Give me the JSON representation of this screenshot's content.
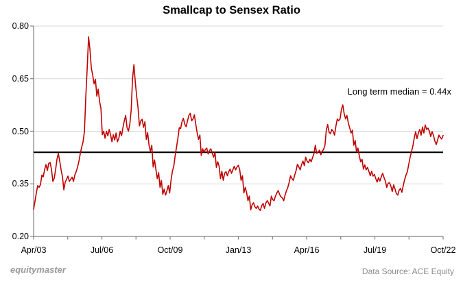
{
  "title": "Smallcap to Sensex Ratio",
  "annotation": "Long term median = 0.44x",
  "footer": {
    "brand": "equitymaster",
    "source": "Data Source: ACE Equity"
  },
  "chart_data": {
    "type": "line",
    "title": "Smallcap to Sensex Ratio",
    "xlabel": "",
    "ylabel": "",
    "ylim": [
      0.2,
      0.8
    ],
    "y_ticks": [
      0.8,
      0.65,
      0.5,
      0.35,
      0.2
    ],
    "y_tick_labels": [
      "0.80",
      "0.65",
      "0.50",
      "0.35",
      "0.20"
    ],
    "x_tick_labels": [
      "Apr/03",
      "Jul/06",
      "Oct/09",
      "Jan/13",
      "Apr/16",
      "Jul/19",
      "Oct/22"
    ],
    "minor_x_ticks_between_labels": 1,
    "grid": "horizontal",
    "legend": "none",
    "median_value": 0.44,
    "median_label": "Long term median = 0.44x",
    "colors": {
      "line": "#C00000",
      "median_line": "#000000",
      "grid": "#D9D9D9",
      "axis": "#808080",
      "text": "#000000",
      "brand_text": "#9a9a9a",
      "source_text": "#8a8a8a",
      "background": "#ffffff"
    },
    "series": [
      {
        "name": "Smallcap to Sensex Ratio",
        "x_note": "299 samples evenly spaced from Apr/03 to Oct/22 (values estimated from plot)",
        "values": [
          0.278,
          0.3,
          0.325,
          0.345,
          0.34,
          0.348,
          0.375,
          0.37,
          0.39,
          0.405,
          0.388,
          0.408,
          0.411,
          0.392,
          0.357,
          0.366,
          0.39,
          0.42,
          0.437,
          0.415,
          0.39,
          0.37,
          0.333,
          0.355,
          0.363,
          0.372,
          0.357,
          0.363,
          0.369,
          0.357,
          0.375,
          0.385,
          0.398,
          0.415,
          0.437,
          0.455,
          0.47,
          0.5,
          0.6,
          0.68,
          0.769,
          0.733,
          0.68,
          0.66,
          0.635,
          0.648,
          0.6,
          0.62,
          0.585,
          0.565,
          0.49,
          0.5,
          0.48,
          0.5,
          0.487,
          0.505,
          0.49,
          0.47,
          0.49,
          0.475,
          0.495,
          0.47,
          0.48,
          0.5,
          0.487,
          0.51,
          0.53,
          0.545,
          0.51,
          0.5,
          0.52,
          0.56,
          0.65,
          0.69,
          0.64,
          0.6,
          0.567,
          0.515,
          0.53,
          0.534,
          0.511,
          0.527,
          0.477,
          0.496,
          0.46,
          0.443,
          0.46,
          0.398,
          0.418,
          0.39,
          0.365,
          0.382,
          0.34,
          0.36,
          0.32,
          0.335,
          0.318,
          0.33,
          0.345,
          0.324,
          0.36,
          0.386,
          0.4,
          0.43,
          0.455,
          0.48,
          0.51,
          0.508,
          0.527,
          0.537,
          0.52,
          0.513,
          0.53,
          0.545,
          0.551,
          0.53,
          0.535,
          0.547,
          0.52,
          0.496,
          0.477,
          0.489,
          0.431,
          0.45,
          0.44,
          0.448,
          0.452,
          0.435,
          0.445,
          0.45,
          0.437,
          0.426,
          0.44,
          0.397,
          0.413,
          0.4,
          0.365,
          0.386,
          0.36,
          0.38,
          0.385,
          0.373,
          0.385,
          0.392,
          0.38,
          0.39,
          0.4,
          0.39,
          0.398,
          0.403,
          0.39,
          0.36,
          0.373,
          0.324,
          0.34,
          0.325,
          0.302,
          0.315,
          0.276,
          0.29,
          0.296,
          0.285,
          0.28,
          0.287,
          0.278,
          0.274,
          0.288,
          0.294,
          0.28,
          0.295,
          0.302,
          0.295,
          0.287,
          0.315,
          0.305,
          0.302,
          0.315,
          0.324,
          0.331,
          0.32,
          0.313,
          0.31,
          0.302,
          0.318,
          0.33,
          0.34,
          0.355,
          0.373,
          0.365,
          0.36,
          0.375,
          0.388,
          0.406,
          0.398,
          0.39,
          0.405,
          0.415,
          0.402,
          0.426,
          0.415,
          0.41,
          0.42,
          0.413,
          0.425,
          0.436,
          0.46,
          0.437,
          0.44,
          0.446,
          0.433,
          0.443,
          0.448,
          0.46,
          0.503,
          0.519,
          0.497,
          0.493,
          0.505,
          0.5,
          0.489,
          0.515,
          0.535,
          0.53,
          0.535,
          0.562,
          0.575,
          0.55,
          0.535,
          0.545,
          0.524,
          0.51,
          0.495,
          0.503,
          0.46,
          0.474,
          0.441,
          0.452,
          0.43,
          0.413,
          0.42,
          0.392,
          0.404,
          0.39,
          0.397,
          0.385,
          0.373,
          0.386,
          0.372,
          0.377,
          0.365,
          0.355,
          0.368,
          0.358,
          0.37,
          0.38,
          0.368,
          0.358,
          0.34,
          0.352,
          0.353,
          0.343,
          0.328,
          0.347,
          0.335,
          0.322,
          0.318,
          0.332,
          0.337,
          0.326,
          0.345,
          0.362,
          0.375,
          0.385,
          0.406,
          0.426,
          0.442,
          0.458,
          0.481,
          0.499,
          0.479,
          0.495,
          0.505,
          0.489,
          0.512,
          0.495,
          0.518,
          0.505,
          0.509,
          0.5,
          0.485,
          0.499,
          0.488,
          0.472,
          0.462,
          0.475,
          0.489,
          0.482,
          0.478,
          0.488
        ]
      }
    ]
  }
}
